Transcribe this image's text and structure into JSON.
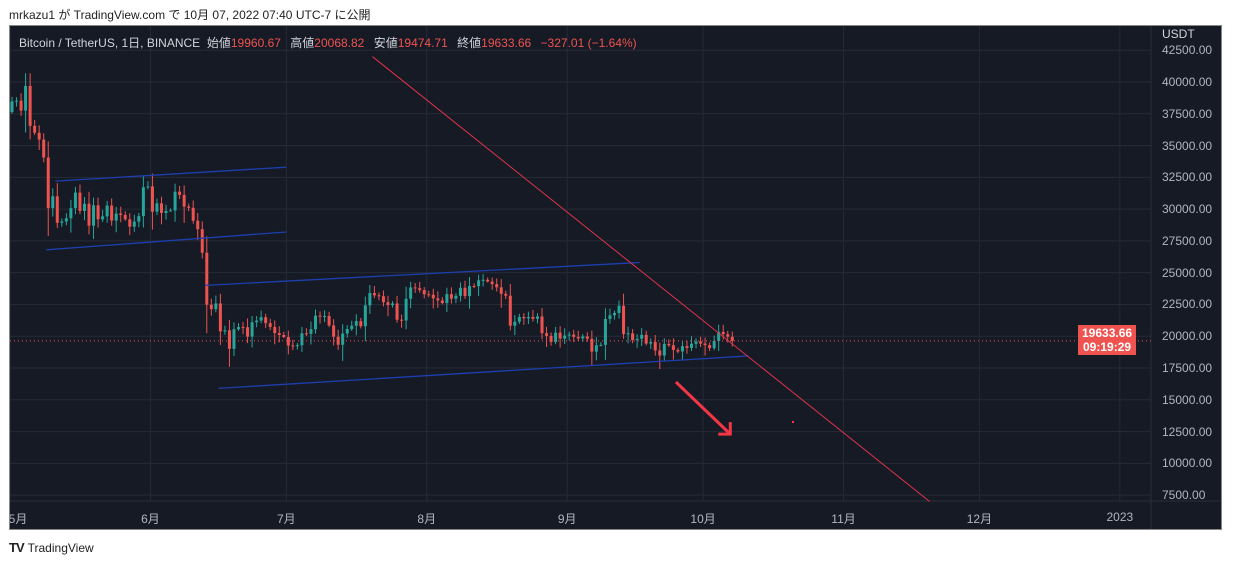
{
  "published": "mrkazu1 が TradingView.com で 10月 07, 2022 07:40 UTC-7 に公開",
  "legend": {
    "symbol": "Bitcoin / TetherUS, 1日, BINANCE",
    "open_label": "始値",
    "open": "19960.67",
    "high_label": "高値",
    "high": "20068.82",
    "low_label": "安値",
    "low": "19474.71",
    "close_label": "終値",
    "close": "19633.66",
    "change": "−327.01 (−1.64%)"
  },
  "price_axis": {
    "currency": "USDT",
    "ticks": [
      "42500.00",
      "40000.00",
      "37500.00",
      "35000.00",
      "32500.00",
      "30000.00",
      "27500.00",
      "25000.00",
      "22500.00",
      "20000.00",
      "17500.00",
      "15000.00",
      "12500.00",
      "10000.00",
      "7500.00"
    ]
  },
  "last_price": {
    "price": "19633.66",
    "countdown": "09:19:29"
  },
  "time_axis": [
    "5月",
    "6月",
    "7月",
    "8月",
    "9月",
    "10月",
    "11月",
    "12月",
    "2023"
  ],
  "footer": {
    "brand": "TradingView"
  },
  "colors": {
    "up": "#26a69a",
    "down": "#ef5350",
    "bg": "#161a25",
    "grid": "#252a36",
    "channel": "#1e3fae",
    "trend": "#e0334a"
  },
  "chart_data": {
    "type": "candlestick",
    "title": "Bitcoin / TetherUS, 1D, BINANCE",
    "start_date": "2022-05-01",
    "ylim": [
      6000,
      43500
    ],
    "closes": [
      38470,
      38530,
      37750,
      39690,
      36550,
      36010,
      35470,
      34060,
      30080,
      31010,
      28930,
      29030,
      29280,
      30080,
      31300,
      29860,
      30420,
      28700,
      30300,
      29200,
      29430,
      30280,
      29100,
      29650,
      29540,
      29200,
      28620,
      29020,
      29450,
      31720,
      31790,
      29800,
      30450,
      29700,
      29860,
      29900,
      31370,
      31120,
      30200,
      30100,
      29090,
      28420,
      26570,
      22480,
      22130,
      22580,
      20380,
      20470,
      19010,
      20550,
      20720,
      20710,
      19970,
      21100,
      21230,
      21500,
      21030,
      20730,
      20250,
      20100,
      19940,
      19270,
      19240,
      19300,
      20230,
      20190,
      20550,
      21620,
      21590,
      21590,
      20850,
      19960,
      19330,
      20210,
      20570,
      20830,
      21190,
      20790,
      22430,
      23400,
      23220,
      23150,
      22680,
      22450,
      22580,
      21300,
      21240,
      22950,
      23840,
      23780,
      23630,
      23300,
      23270,
      22980,
      22820,
      22610,
      23310,
      22960,
      23180,
      23810,
      23160,
      23950,
      23940,
      24400,
      24440,
      24300,
      24100,
      23850,
      23340,
      23190,
      20830,
      21140,
      21520,
      21410,
      21520,
      21370,
      21560,
      20240,
      20030,
      19550,
      20280,
      19810,
      20050,
      20130,
      19950,
      19830,
      19990,
      19800,
      18790,
      19290,
      19320,
      21360,
      21650,
      21830,
      22400,
      20170,
      20230,
      19700,
      19800,
      20110,
      19420,
      19540,
      18880,
      18480,
      19400,
      19290,
      18920,
      18800,
      19220,
      19080,
      19410,
      19590,
      19420,
      19310,
      19060,
      19630,
      20340,
      20160,
      19960,
      19633.66
    ],
    "first_open": 37640,
    "drawings": {
      "channels": [
        {
          "from": [
            "2022-05-11",
            32200
          ],
          "to": [
            "2022-07-01",
            33300
          ]
        },
        {
          "from": [
            "2022-05-09",
            26800
          ],
          "to": [
            "2022-07-01",
            28200
          ]
        },
        {
          "from": [
            "2022-06-13",
            24000
          ],
          "to": [
            "2022-09-17",
            25800
          ]
        },
        {
          "from": [
            "2022-06-16",
            15900
          ],
          "to": [
            "2022-10-11",
            18450
          ]
        }
      ],
      "trendline": {
        "from": [
          "2022-07-20",
          42000
        ],
        "to": [
          "2022-11-20",
          7000
        ]
      },
      "arrow": {
        "from": [
          "2022-09-25",
          16400
        ],
        "to": [
          "2022-10-07",
          12300
        ],
        "direction": "down"
      }
    }
  }
}
